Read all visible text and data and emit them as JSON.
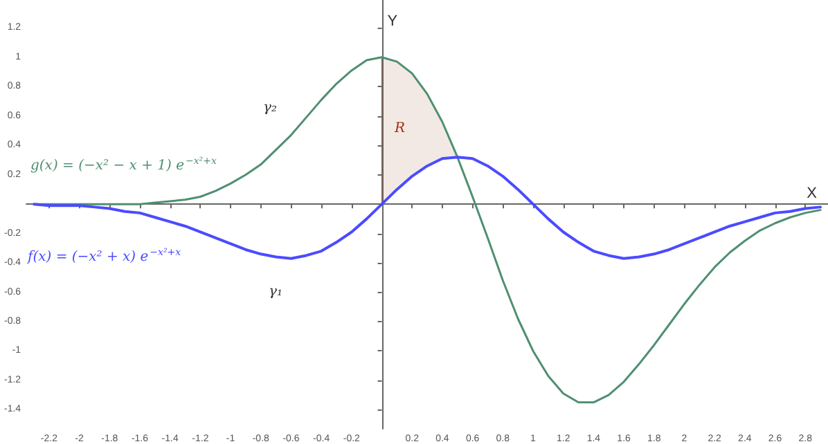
{
  "chart_data": {
    "type": "line",
    "xlabel": "X",
    "ylabel": "Y",
    "xlim": [
      -2.35,
      2.95
    ],
    "ylim": [
      -1.53,
      1.39
    ],
    "xticks": [
      -2.2,
      -2,
      -1.8,
      -1.6,
      -1.4,
      -1.2,
      -1,
      -0.8,
      -0.6,
      -0.4,
      -0.2,
      0.2,
      0.4,
      0.6,
      0.8,
      1,
      1.2,
      1.4,
      1.6,
      1.8,
      2,
      2.2,
      2.4,
      2.6,
      2.8
    ],
    "yticks": [
      -1.4,
      -1.2,
      -1,
      -0.8,
      -0.6,
      -0.4,
      -0.2,
      0.2,
      0.4,
      0.6,
      0.8,
      1,
      1.2
    ],
    "marker": "none",
    "line_style": "solid",
    "x": [
      -2.3,
      -2.2,
      -2.1,
      -2,
      -1.9,
      -1.8,
      -1.7,
      -1.6,
      -1.5,
      -1.4,
      -1.3,
      -1.2,
      -1.1,
      -1,
      -0.9,
      -0.8,
      -0.7,
      -0.6,
      -0.5,
      -0.4,
      -0.3,
      -0.2,
      -0.1,
      0,
      0.1,
      0.2,
      0.3,
      0.4,
      0.5,
      0.6,
      0.7,
      0.8,
      0.9,
      1,
      1.1,
      1.2,
      1.3,
      1.35,
      1.4,
      1.5,
      1.6,
      1.7,
      1.8,
      1.9,
      2,
      2.1,
      2.2,
      2.3,
      2.4,
      2.5,
      2.6,
      2.7,
      2.8,
      2.9
    ],
    "series": [
      {
        "color": "#4f8f70",
        "values": [
          0,
          0,
          0,
          0,
          0,
          0,
          0,
          0,
          0.01,
          0.02,
          0.03,
          0.05,
          0.09,
          0.14,
          0.2,
          0.27,
          0.37,
          0.47,
          0.59,
          0.71,
          0.82,
          0.91,
          0.98,
          1,
          0.97,
          0.89,
          0.75,
          0.56,
          0.32,
          0.05,
          -0.23,
          -0.52,
          -0.78,
          -1,
          -1.17,
          -1.29,
          -1.35,
          -1.35,
          -1.35,
          -1.3,
          -1.21,
          -1.09,
          -0.96,
          -0.82,
          -0.68,
          -0.55,
          -0.43,
          -0.33,
          -0.25,
          -0.18,
          -0.13,
          -0.09,
          -0.06,
          -0.04
        ]
      },
      {
        "color": "#4b4bff",
        "values": [
          0,
          -0.01,
          -0.01,
          -0.01,
          -0.02,
          -0.03,
          -0.05,
          -0.06,
          -0.09,
          -0.12,
          -0.15,
          -0.19,
          -0.23,
          -0.27,
          -0.31,
          -0.34,
          -0.36,
          -0.37,
          -0.35,
          -0.32,
          -0.26,
          -0.19,
          -0.1,
          0,
          0.1,
          0.19,
          0.26,
          0.31,
          0.32,
          0.31,
          0.26,
          0.19,
          0.1,
          0,
          -0.1,
          -0.19,
          -0.26,
          -0.29,
          -0.32,
          -0.35,
          -0.37,
          -0.36,
          -0.34,
          -0.31,
          -0.27,
          -0.23,
          -0.19,
          -0.15,
          -0.12,
          -0.09,
          -0.06,
          -0.05,
          -0.03,
          -0.02
        ]
      }
    ],
    "annotations": [
      "g(x) = (−x² − x + 1) e$^{−x²+x}$",
      "f(x) = (−x² + x) e$^{−x²+x}$",
      "γ₂",
      "γ₁",
      "R"
    ]
  }
}
